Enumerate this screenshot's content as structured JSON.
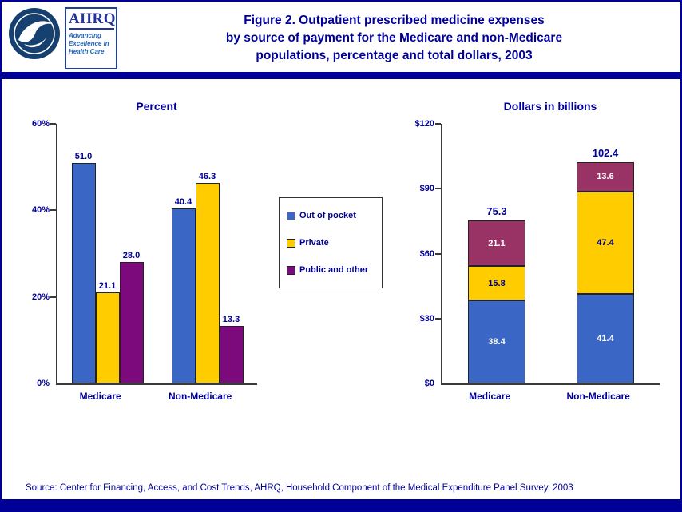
{
  "header": {
    "title_lines": [
      "Figure 2. Outpatient prescribed medicine expenses",
      "by source of payment for the Medicare and non-Medicare",
      "populations, percentage and total dollars, 2003"
    ]
  },
  "logos": {
    "ahrq_acronym": "AHRQ",
    "ahrq_tagline_lines": [
      "Advancing",
      "Excellence in",
      "Health Care"
    ]
  },
  "legend": {
    "items": [
      {
        "label": "Out of pocket",
        "color": "#3a67c6"
      },
      {
        "label": "Private",
        "color": "#ffcc00"
      },
      {
        "label": "Public and other",
        "color": "#7d0a7d"
      }
    ]
  },
  "footer": {
    "source": "Source: Center for Financing, Access, and Cost Trends, AHRQ, Household Component of the Medical Expenditure Panel Survey, 2003"
  },
  "chart_data": [
    {
      "type": "bar",
      "title": "Percent",
      "categories": [
        "Medicare",
        "Non-Medicare"
      ],
      "series": [
        {
          "name": "Out of pocket",
          "color": "#3a67c6",
          "values": [
            51.0,
            40.4
          ]
        },
        {
          "name": "Private",
          "color": "#ffcc00",
          "values": [
            21.1,
            46.3
          ]
        },
        {
          "name": "Public and other",
          "color": "#7d0a7d",
          "values": [
            28.0,
            13.3
          ]
        }
      ],
      "value_labels": [
        [
          "51.0",
          "21.1",
          "28.0"
        ],
        [
          "40.4",
          "46.3",
          "13.3"
        ]
      ],
      "ylim": [
        0,
        60
      ],
      "yticks": [
        0,
        20,
        40,
        60
      ],
      "ytick_labels": [
        "0%",
        "20%",
        "40%",
        "60%"
      ],
      "grid": false,
      "legend_position": "between-charts"
    },
    {
      "type": "stacked-bar",
      "title": "Dollars in billions",
      "categories": [
        "Medicare",
        "Non-Medicare"
      ],
      "series": [
        {
          "name": "Out of pocket",
          "color": "#3a67c6",
          "values": [
            38.4,
            41.4
          ],
          "label_color": "#ffffff"
        },
        {
          "name": "Private",
          "color": "#ffcc00",
          "values": [
            15.8,
            47.4
          ],
          "label_color": "#000080"
        },
        {
          "name": "Public and other",
          "color": "#993366",
          "values": [
            21.1,
            13.6
          ],
          "label_color": "#ffffff"
        }
      ],
      "totals": [
        "75.3",
        "102.4"
      ],
      "ylim": [
        0,
        120
      ],
      "yticks": [
        0,
        30,
        60,
        90,
        120
      ],
      "ytick_labels": [
        "$0",
        "$30",
        "$60",
        "$90",
        "$120"
      ],
      "grid": false
    }
  ]
}
